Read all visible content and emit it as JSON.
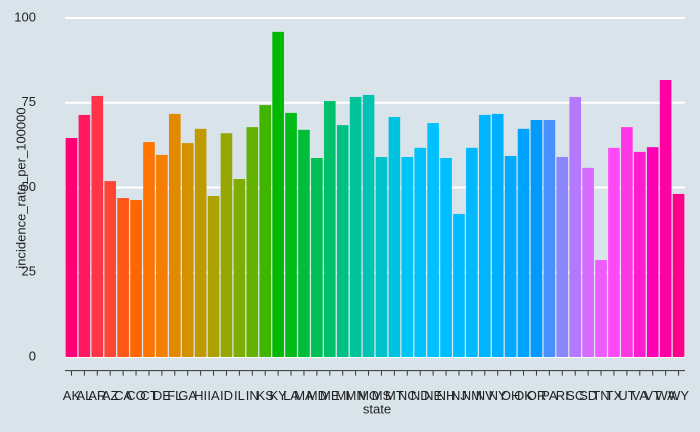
{
  "chart_data": {
    "type": "bar",
    "x_label": "state",
    "y_label": "incidence_rate_per_100000",
    "categories": [
      "AK",
      "AL",
      "AR",
      "AZ",
      "CA",
      "CO",
      "CT",
      "DE",
      "FL",
      "GA",
      "HI",
      "IA",
      "ID",
      "IL",
      "IN",
      "KS",
      "KY",
      "LA",
      "MA",
      "MD",
      "ME",
      "MI",
      "MN",
      "MO",
      "MS",
      "MT",
      "NC",
      "ND",
      "NE",
      "NH",
      "NJ",
      "NM",
      "NV",
      "NY",
      "OH",
      "OK",
      "OR",
      "PA",
      "RI",
      "SC",
      "SD",
      "TN",
      "TX",
      "UT",
      "VA",
      "VT",
      "WA",
      "WY"
    ],
    "values": [
      64.6,
      71.4,
      77,
      51.9,
      46.9,
      46.3,
      63.4,
      59.6,
      71.7,
      63.1,
      67.3,
      47.5,
      66,
      52.5,
      67.8,
      74.3,
      95.9,
      72,
      67,
      58.7,
      75.5,
      68.4,
      76.7,
      77.3,
      59,
      70.8,
      59,
      61.7,
      69,
      58.7,
      42.2,
      61.7,
      71.4,
      71.7,
      59.3,
      67.3,
      69.9,
      69.9,
      59,
      76.7,
      55.8,
      28.6,
      61.7,
      67.8,
      60.5,
      61.9,
      81.7,
      48.1
    ],
    "palette": "hue",
    "ylim": [
      -4,
      104
    ],
    "yticks": [
      0,
      25,
      50,
      75,
      100
    ],
    "grid": true
  }
}
